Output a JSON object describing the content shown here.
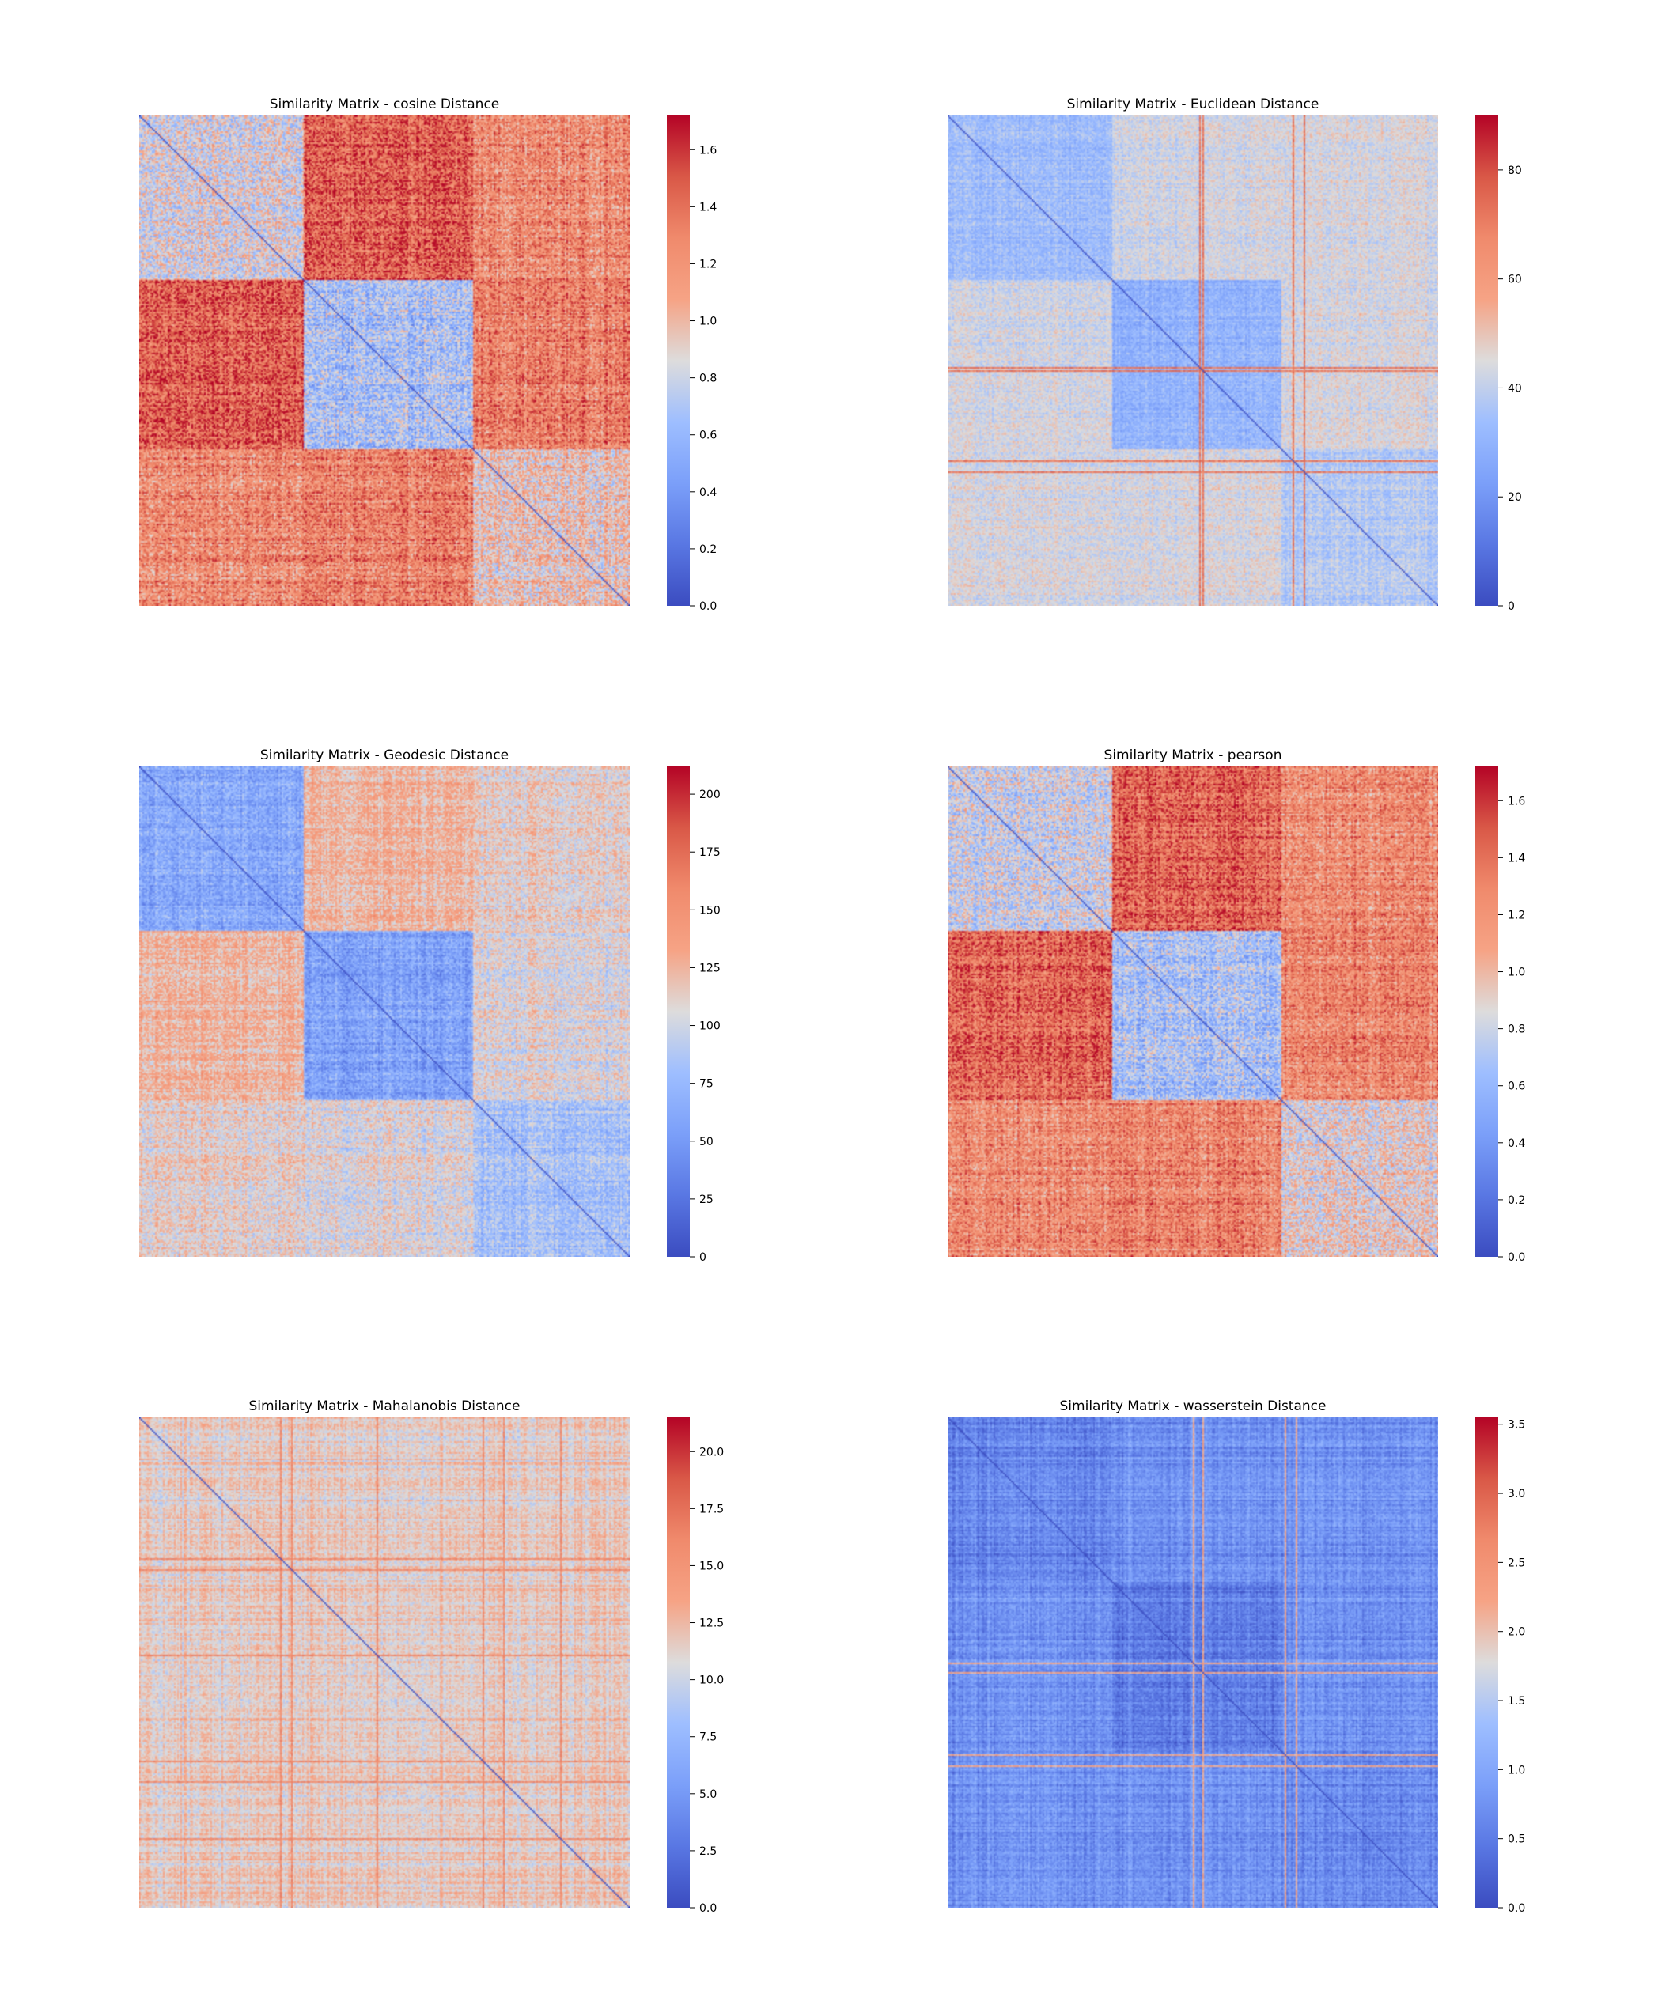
{
  "figure": {
    "background": "#ffffff",
    "colormap": "coolwarm"
  },
  "colormap": {
    "stops": [
      [
        0.0,
        "#3b4cc0"
      ],
      [
        0.125,
        "#5977e3"
      ],
      [
        0.25,
        "#7b9ff9"
      ],
      [
        0.375,
        "#9ebeff"
      ],
      [
        0.5,
        "#dddcdc"
      ],
      [
        0.625,
        "#f6a385"
      ],
      [
        0.75,
        "#f08a6c"
      ],
      [
        0.875,
        "#d95847"
      ],
      [
        1.0,
        "#b40426"
      ]
    ]
  },
  "chart_data": [
    {
      "type": "heatmap",
      "title": "Similarity Matrix - cosine Distance",
      "vmin": 0.0,
      "vmax": 1.72,
      "ticks": [
        0.0,
        0.2,
        0.4,
        0.6,
        0.8,
        1.0,
        1.2,
        1.4,
        1.6
      ],
      "tick_labels": [
        "0.0",
        "0.2",
        "0.4",
        "0.6",
        "0.8",
        "1.0",
        "1.2",
        "1.4",
        "1.6"
      ],
      "clusters": [
        0,
        0.333,
        0.678,
        1
      ],
      "block_means": [
        [
          0.85,
          1.45,
          1.25
        ],
        [
          1.45,
          0.65,
          1.3
        ],
        [
          1.25,
          1.3,
          0.95
        ]
      ],
      "noise": 0.28,
      "row_noise": 0.18,
      "col_noise": 0.08
    },
    {
      "type": "heatmap",
      "title": "Similarity Matrix - Euclidean Distance",
      "vmin": 0,
      "vmax": 90,
      "ticks": [
        0,
        20,
        40,
        60,
        80
      ],
      "tick_labels": [
        "0",
        "20",
        "40",
        "60",
        "80"
      ],
      "clusters": [
        0,
        0.333,
        0.678,
        1
      ],
      "block_means": [
        [
          33,
          43,
          44
        ],
        [
          43,
          30,
          44
        ],
        [
          44,
          44,
          38
        ]
      ],
      "noise": 6,
      "row_noise": 4,
      "col_noise": 4,
      "stripes": [
        0.515,
        0.705,
        0.727,
        0.52
      ],
      "stripe_value": 72
    },
    {
      "type": "heatmap",
      "title": "Similarity Matrix - Geodesic Distance",
      "vmin": 0,
      "vmax": 212,
      "ticks": [
        0,
        25,
        50,
        75,
        100,
        125,
        150,
        175,
        200
      ],
      "tick_labels": [
        "0",
        "25",
        "50",
        "75",
        "100",
        "125",
        "150",
        "175",
        "200"
      ],
      "clusters": [
        0,
        0.333,
        0.678,
        1
      ],
      "block_means": [
        [
          62,
          125,
          110
        ],
        [
          125,
          58,
          105
        ],
        [
          110,
          105,
          80
        ]
      ],
      "noise": 20,
      "row_noise": 14,
      "col_noise": 12
    },
    {
      "type": "heatmap",
      "title": "Similarity Matrix - pearson",
      "vmin": 0.0,
      "vmax": 1.72,
      "ticks": [
        0.0,
        0.2,
        0.4,
        0.6,
        0.8,
        1.0,
        1.2,
        1.4,
        1.6
      ],
      "tick_labels": [
        "0.0",
        "0.2",
        "0.4",
        "0.6",
        "0.8",
        "1.0",
        "1.2",
        "1.4",
        "1.6"
      ],
      "clusters": [
        0,
        0.333,
        0.678,
        1
      ],
      "block_means": [
        [
          0.8,
          1.45,
          1.25
        ],
        [
          1.45,
          0.7,
          1.3
        ],
        [
          1.25,
          1.3,
          0.9
        ]
      ],
      "noise": 0.26,
      "row_noise": 0.18,
      "col_noise": 0.08
    },
    {
      "type": "heatmap",
      "title": "Similarity Matrix - Mahalanobis Distance",
      "vmin": 0.0,
      "vmax": 21.5,
      "ticks": [
        0.0,
        2.5,
        5.0,
        7.5,
        10.0,
        12.5,
        15.0,
        17.5,
        20.0
      ],
      "tick_labels": [
        "0.0",
        "2.5",
        "5.0",
        "7.5",
        "10.0",
        "12.5",
        "15.0",
        "17.5",
        "20.0"
      ],
      "clusters": [
        0,
        1
      ],
      "block_means": [
        [
          11.5
        ]
      ],
      "noise": 1.3,
      "row_noise": 1.6,
      "col_noise": 1.6,
      "stripes": [
        0.29,
        0.485,
        0.7,
        0.31,
        0.745,
        0.86
      ],
      "stripe_value": 16
    },
    {
      "type": "heatmap",
      "title": "Similarity Matrix - wasserstein Distance",
      "vmin": 0.0,
      "vmax": 3.55,
      "ticks": [
        0.0,
        0.5,
        1.0,
        1.5,
        2.0,
        2.5,
        3.0,
        3.5
      ],
      "tick_labels": [
        "0.0",
        "0.5",
        "1.0",
        "1.5",
        "2.0",
        "2.5",
        "3.0",
        "3.5"
      ],
      "clusters": [
        0,
        0.333,
        0.678,
        1
      ],
      "block_means": [
        [
          0.6,
          0.75,
          0.75
        ],
        [
          0.75,
          0.55,
          0.75
        ],
        [
          0.75,
          0.75,
          0.65
        ]
      ],
      "noise": 0.22,
      "row_noise": 0.22,
      "col_noise": 0.28,
      "stripes": [
        0.5,
        0.69,
        0.71,
        0.52
      ],
      "stripe_value": 2.2
    }
  ]
}
